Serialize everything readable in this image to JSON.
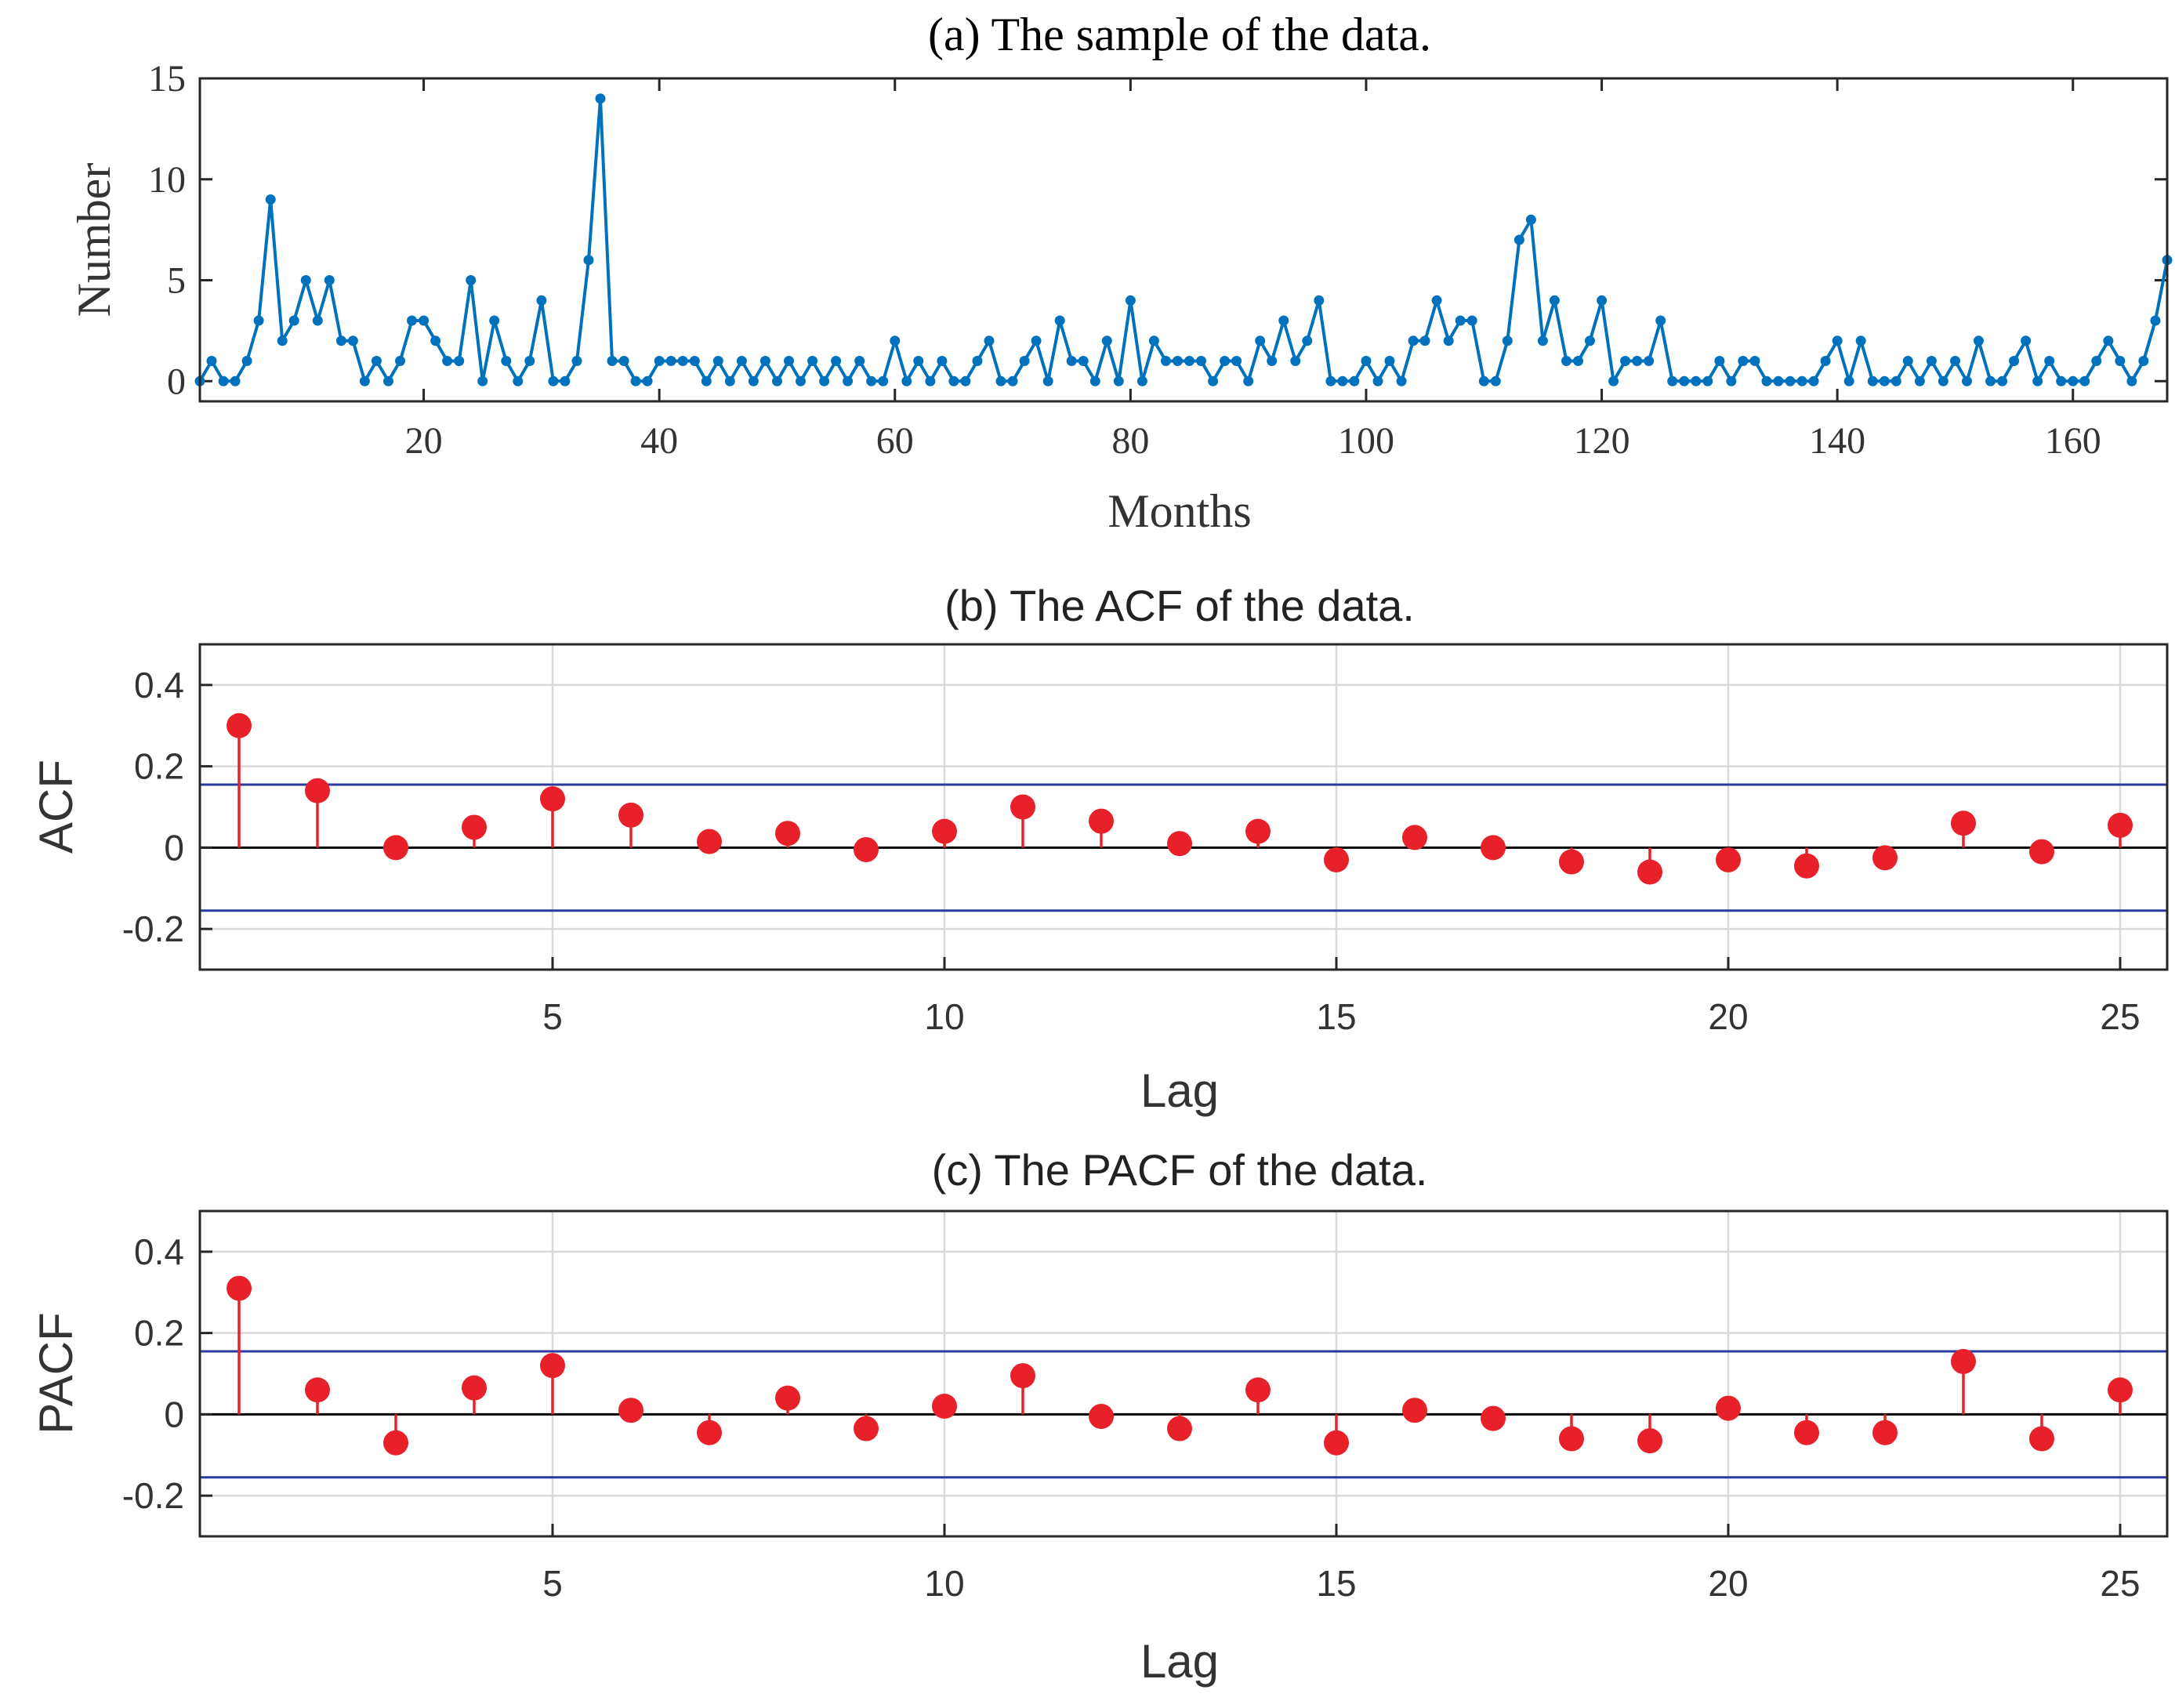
{
  "colors": {
    "series_a": "#0072BD",
    "stem": "#E8202A",
    "conf_band": "#2B3A9E",
    "zero_line": "#000000",
    "grid": "#D9D9D9",
    "axes": "#262626"
  },
  "chart_data": [
    {
      "id": "a",
      "type": "line",
      "title": "(a) The sample of the data.",
      "xlabel": "Months",
      "ylabel": "Number",
      "xlim": [
        1,
        168
      ],
      "ylim": [
        -1,
        15
      ],
      "xticks": [
        20,
        40,
        60,
        80,
        100,
        120,
        140,
        160
      ],
      "yticks": [
        0,
        5,
        10,
        15
      ],
      "grid": false,
      "series": [
        {
          "name": "Number",
          "x_start": 1,
          "values": [
            0,
            1,
            0,
            0,
            1,
            3,
            9,
            2,
            3,
            5,
            3,
            5,
            2,
            2,
            0,
            1,
            0,
            1,
            3,
            3,
            2,
            1,
            1,
            5,
            0,
            3,
            1,
            0,
            1,
            4,
            0,
            0,
            1,
            6,
            14,
            1,
            1,
            0,
            0,
            1,
            1,
            1,
            1,
            0,
            1,
            0,
            1,
            0,
            1,
            0,
            1,
            0,
            1,
            0,
            1,
            0,
            1,
            0,
            0,
            2,
            0,
            1,
            0,
            1,
            0,
            0,
            1,
            2,
            0,
            0,
            1,
            2,
            0,
            3,
            1,
            1,
            0,
            2,
            0,
            4,
            0,
            2,
            1,
            1,
            1,
            1,
            0,
            1,
            1,
            0,
            2,
            1,
            3,
            1,
            2,
            4,
            0,
            0,
            0,
            1,
            0,
            1,
            0,
            2,
            2,
            4,
            2,
            3,
            3,
            0,
            0,
            2,
            7,
            8,
            2,
            4,
            1,
            1,
            2,
            4,
            0,
            1,
            1,
            1,
            3,
            0,
            0,
            0,
            0,
            1,
            0,
            1,
            1,
            0,
            0,
            0,
            0,
            0,
            1,
            2,
            0,
            2,
            0,
            0,
            0,
            1,
            0,
            1,
            0,
            1,
            0,
            2,
            0,
            0,
            1,
            2,
            0,
            1,
            0,
            0,
            0,
            1,
            2,
            1,
            0,
            1,
            3,
            6
          ]
        }
      ]
    },
    {
      "id": "b",
      "type": "stem",
      "title": "(b) The ACF of the data.",
      "xlabel": "Lag",
      "ylabel": "ACF",
      "xlim": [
        0.5,
        25.6
      ],
      "ylim": [
        -0.3,
        0.5
      ],
      "xticks": [
        5,
        10,
        15,
        20,
        25
      ],
      "yticks": [
        -0.2,
        0,
        0.2,
        0.4
      ],
      "ytick_labels": [
        "-0.2",
        "0",
        "0.2",
        "0.4"
      ],
      "grid": true,
      "confidence_bound": 0.155,
      "lags": [
        1,
        2,
        3,
        4,
        5,
        6,
        7,
        8,
        9,
        10,
        11,
        12,
        13,
        14,
        15,
        16,
        17,
        18,
        19,
        20,
        21,
        22,
        23,
        24,
        25
      ],
      "values": [
        0.3,
        0.14,
        0.0,
        0.05,
        0.12,
        0.08,
        0.015,
        0.035,
        -0.005,
        0.04,
        0.1,
        0.065,
        0.01,
        0.04,
        -0.03,
        0.025,
        0.0,
        -0.035,
        -0.06,
        -0.03,
        -0.045,
        -0.025,
        0.06,
        -0.01,
        0.055
      ]
    },
    {
      "id": "c",
      "type": "stem",
      "title": "(c) The PACF of the data.",
      "xlabel": "Lag",
      "ylabel": "PACF",
      "xlim": [
        0.5,
        25.6
      ],
      "ylim": [
        -0.3,
        0.5
      ],
      "xticks": [
        5,
        10,
        15,
        20,
        25
      ],
      "yticks": [
        -0.2,
        0,
        0.2,
        0.4
      ],
      "ytick_labels": [
        "-0.2",
        "0",
        "0.2",
        "0.4"
      ],
      "grid": true,
      "confidence_bound": 0.155,
      "lags": [
        1,
        2,
        3,
        4,
        5,
        6,
        7,
        8,
        9,
        10,
        11,
        12,
        13,
        14,
        15,
        16,
        17,
        18,
        19,
        20,
        21,
        22,
        23,
        24,
        25
      ],
      "values": [
        0.31,
        0.06,
        -0.07,
        0.065,
        0.12,
        0.01,
        -0.045,
        0.04,
        -0.035,
        0.02,
        0.095,
        -0.005,
        -0.035,
        0.06,
        -0.07,
        0.01,
        -0.01,
        -0.06,
        -0.065,
        0.015,
        -0.045,
        -0.045,
        0.13,
        -0.06,
        0.06
      ]
    }
  ]
}
